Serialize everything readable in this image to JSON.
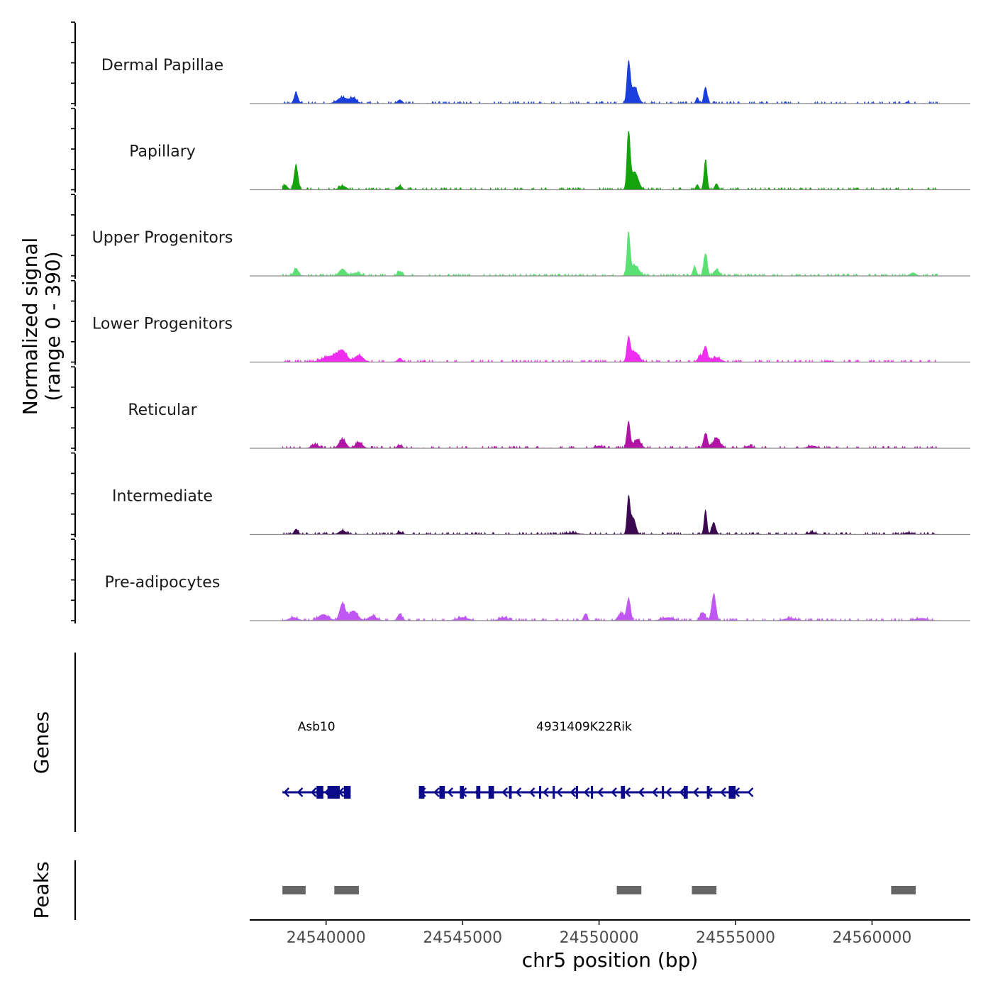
{
  "chart_data": {
    "type": "area",
    "title": "",
    "chromosome": "chr5",
    "xlabel": "chr5 position (bp)",
    "ylabel_line1": "Normalized signal",
    "ylabel_line2": "(range 0 - 390)",
    "y_range": [
      0,
      390
    ],
    "xlim": [
      24537200,
      24563600
    ],
    "x_ticks": [
      24540000,
      24545000,
      24550000,
      24555000,
      24560000
    ],
    "x_tick_labels": [
      "24540000",
      "24545000",
      "24550000",
      "24555000",
      "24560000"
    ],
    "series": [
      {
        "name": "Dermal Papillae",
        "color": "#1a3fdc",
        "peaks": [
          [
            24538900,
            70,
            70
          ],
          [
            24540600,
            40,
            180
          ],
          [
            24541000,
            35,
            120
          ],
          [
            24542700,
            25,
            80
          ],
          [
            24551080,
            270,
            60
          ],
          [
            24551300,
            110,
            120
          ],
          [
            24553900,
            110,
            60
          ],
          [
            24553600,
            40,
            50
          ],
          [
            24561300,
            10,
            60
          ]
        ]
      },
      {
        "name": "Papillary",
        "color": "#14a30c",
        "peaks": [
          [
            24538900,
            160,
            70
          ],
          [
            24538500,
            30,
            80
          ],
          [
            24540600,
            25,
            120
          ],
          [
            24542700,
            25,
            80
          ],
          [
            24551080,
            400,
            55
          ],
          [
            24551300,
            120,
            130
          ],
          [
            24553900,
            200,
            55
          ],
          [
            24553600,
            35,
            50
          ],
          [
            24554300,
            40,
            60
          ]
        ]
      },
      {
        "name": "Upper Progenitors",
        "color": "#5ae073",
        "peaks": [
          [
            24538900,
            50,
            80
          ],
          [
            24540600,
            45,
            120
          ],
          [
            24541100,
            20,
            150
          ],
          [
            24542700,
            30,
            80
          ],
          [
            24551080,
            270,
            55
          ],
          [
            24551300,
            70,
            150
          ],
          [
            24553900,
            150,
            65
          ],
          [
            24553500,
            60,
            60
          ],
          [
            24554300,
            40,
            100
          ],
          [
            24561500,
            20,
            100
          ]
        ]
      },
      {
        "name": "Lower Progenitors",
        "color": "#f02ef0",
        "peaks": [
          [
            24540200,
            40,
            300
          ],
          [
            24540600,
            65,
            150
          ],
          [
            24541200,
            45,
            150
          ],
          [
            24542700,
            25,
            80
          ],
          [
            24551080,
            150,
            60
          ],
          [
            24551300,
            70,
            150
          ],
          [
            24553900,
            105,
            70
          ],
          [
            24553700,
            40,
            80
          ],
          [
            24554300,
            30,
            150
          ]
        ]
      },
      {
        "name": "Reticular",
        "color": "#b014a4",
        "peaks": [
          [
            24539600,
            25,
            120
          ],
          [
            24540600,
            60,
            120
          ],
          [
            24541200,
            40,
            120
          ],
          [
            24542700,
            20,
            80
          ],
          [
            24550000,
            15,
            120
          ],
          [
            24551080,
            180,
            60
          ],
          [
            24551400,
            60,
            120
          ],
          [
            24553900,
            100,
            70
          ],
          [
            24554300,
            70,
            120
          ],
          [
            24555500,
            15,
            120
          ],
          [
            24557800,
            15,
            150
          ]
        ]
      },
      {
        "name": "Intermediate",
        "color": "#3c0852",
        "peaks": [
          [
            24538900,
            35,
            70
          ],
          [
            24540600,
            25,
            120
          ],
          [
            24542700,
            15,
            80
          ],
          [
            24549000,
            10,
            200
          ],
          [
            24551080,
            245,
            55
          ],
          [
            24551250,
            110,
            90
          ],
          [
            24553900,
            165,
            50
          ],
          [
            24554200,
            80,
            70
          ],
          [
            24557800,
            15,
            120
          ],
          [
            24561300,
            12,
            100
          ]
        ]
      },
      {
        "name": "Pre-adipocytes",
        "color": "#c057f2",
        "peaks": [
          [
            24538800,
            20,
            150
          ],
          [
            24539900,
            40,
            180
          ],
          [
            24540600,
            115,
            100
          ],
          [
            24541000,
            65,
            150
          ],
          [
            24541700,
            30,
            150
          ],
          [
            24542700,
            45,
            80
          ],
          [
            24545000,
            20,
            200
          ],
          [
            24546500,
            20,
            150
          ],
          [
            24549500,
            45,
            60
          ],
          [
            24551080,
            145,
            70
          ],
          [
            24550800,
            50,
            100
          ],
          [
            24552500,
            20,
            200
          ],
          [
            24554200,
            175,
            75
          ],
          [
            24553800,
            55,
            90
          ],
          [
            24557000,
            15,
            200
          ],
          [
            24561800,
            15,
            200
          ]
        ]
      }
    ],
    "genes_track": {
      "title": "Genes",
      "genes": [
        {
          "name": "Asb10",
          "start": 24538400,
          "end": 24540900,
          "strand": "-",
          "exons": [
            [
              24539650,
              24539900
            ],
            [
              24540050,
              24540500
            ],
            [
              24540650,
              24540900
            ]
          ]
        },
        {
          "name": "4931409K22Rik",
          "start": 24543400,
          "end": 24555500,
          "strand": "-",
          "exons": [
            [
              24543400,
              24543600
            ],
            [
              24544150,
              24544350
            ],
            [
              24544900,
              24545050
            ],
            [
              24545500,
              24545650
            ],
            [
              24545950,
              24546150
            ],
            [
              24546700,
              24546800
            ],
            [
              24547800,
              24547880
            ],
            [
              24548300,
              24548380
            ],
            [
              24549150,
              24549220
            ],
            [
              24549700,
              24549780
            ],
            [
              24550800,
              24550950
            ],
            [
              24552300,
              24552380
            ],
            [
              24553100,
              24553250
            ],
            [
              24553950,
              24554050
            ],
            [
              24554750,
              24555000
            ]
          ]
        }
      ]
    },
    "peaks_track": {
      "title": "Peaks",
      "color": "#666666",
      "regions": [
        [
          24538400,
          24539250
        ],
        [
          24540300,
          24541200
        ],
        [
          24550650,
          24551550
        ],
        [
          24553400,
          24554300
        ],
        [
          24560700,
          24561600
        ]
      ]
    }
  }
}
